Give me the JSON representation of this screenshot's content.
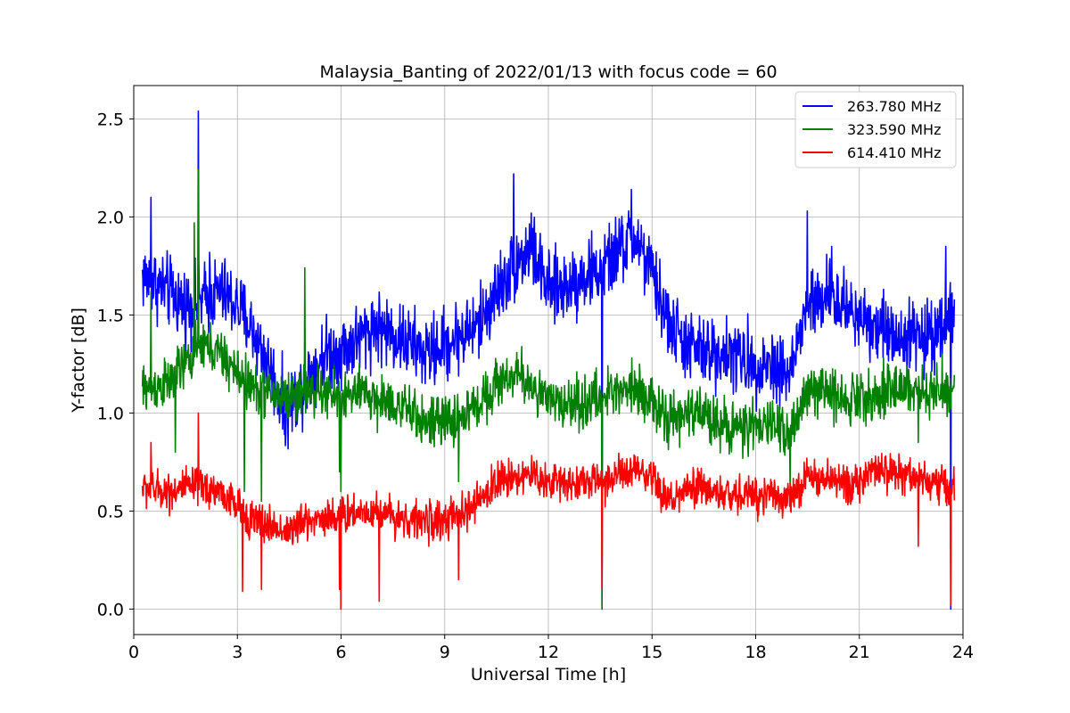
{
  "chart_data": {
    "type": "line",
    "title": "Malaysia_Banting of 2022/01/13 with focus code = 60",
    "xlabel": "Universal Time [h]",
    "ylabel": "Y-factor [dB]",
    "xlim": [
      0,
      24
    ],
    "ylim": [
      -0.13,
      2.67
    ],
    "xticks": [
      0,
      3,
      6,
      9,
      12,
      15,
      18,
      21,
      24
    ],
    "xtick_labels": [
      "0",
      "3",
      "6",
      "9",
      "12",
      "15",
      "18",
      "21",
      "24"
    ],
    "yticks": [
      0.0,
      0.5,
      1.0,
      1.5,
      2.0,
      2.5
    ],
    "ytick_labels": [
      "0.0",
      "0.5",
      "1.0",
      "1.5",
      "2.0",
      "2.5"
    ],
    "grid": true,
    "legend_position": "top-right",
    "x_start": 0.25,
    "x_end": 23.75,
    "series": [
      {
        "name": "263.780 MHz",
        "color": "#0000ff",
        "noise": 0.13,
        "anchors": [
          [
            0.25,
            1.7
          ],
          [
            1,
            1.62
          ],
          [
            1.5,
            1.55
          ],
          [
            2,
            1.58
          ],
          [
            2.5,
            1.62
          ],
          [
            3,
            1.55
          ],
          [
            3.5,
            1.4
          ],
          [
            4,
            1.2
          ],
          [
            4.4,
            1.0
          ],
          [
            5,
            1.18
          ],
          [
            5.5,
            1.3
          ],
          [
            6,
            1.32
          ],
          [
            6.5,
            1.38
          ],
          [
            7,
            1.45
          ],
          [
            7.5,
            1.4
          ],
          [
            8,
            1.35
          ],
          [
            8.5,
            1.3
          ],
          [
            9,
            1.35
          ],
          [
            9.5,
            1.4
          ],
          [
            10,
            1.45
          ],
          [
            10.5,
            1.62
          ],
          [
            11,
            1.75
          ],
          [
            11.5,
            1.85
          ],
          [
            12,
            1.62
          ],
          [
            12.5,
            1.65
          ],
          [
            13,
            1.7
          ],
          [
            13.5,
            1.72
          ],
          [
            14,
            1.82
          ],
          [
            14.5,
            1.9
          ],
          [
            15,
            1.7
          ],
          [
            15.5,
            1.45
          ],
          [
            16,
            1.35
          ],
          [
            16.5,
            1.3
          ],
          [
            17,
            1.32
          ],
          [
            17.5,
            1.28
          ],
          [
            18,
            1.25
          ],
          [
            18.5,
            1.25
          ],
          [
            19,
            1.2
          ],
          [
            19.5,
            1.55
          ],
          [
            20,
            1.58
          ],
          [
            20.5,
            1.55
          ],
          [
            21,
            1.5
          ],
          [
            21.5,
            1.45
          ],
          [
            22,
            1.4
          ],
          [
            22.5,
            1.4
          ],
          [
            23,
            1.38
          ],
          [
            23.75,
            1.55
          ]
        ],
        "spikes": [
          [
            0.5,
            2.1
          ],
          [
            1.87,
            2.54
          ],
          [
            2.2,
            1.82
          ],
          [
            11,
            2.22
          ],
          [
            11.5,
            2.02
          ],
          [
            13.55,
            0.0
          ],
          [
            14.4,
            2.14
          ],
          [
            19.5,
            2.03
          ],
          [
            20.2,
            1.85
          ],
          [
            23.65,
            0.0
          ],
          [
            23.5,
            1.85
          ]
        ]
      },
      {
        "name": "323.590 MHz",
        "color": "#008000",
        "noise": 0.09,
        "anchors": [
          [
            0.25,
            1.12
          ],
          [
            1,
            1.15
          ],
          [
            1.5,
            1.25
          ],
          [
            2,
            1.35
          ],
          [
            2.5,
            1.3
          ],
          [
            3,
            1.2
          ],
          [
            3.5,
            1.12
          ],
          [
            4,
            1.1
          ],
          [
            4.5,
            1.08
          ],
          [
            5,
            1.12
          ],
          [
            5.5,
            1.1
          ],
          [
            6,
            1.08
          ],
          [
            6.5,
            1.1
          ],
          [
            7,
            1.08
          ],
          [
            7.5,
            1.05
          ],
          [
            8,
            1.0
          ],
          [
            8.5,
            0.95
          ],
          [
            9,
            0.95
          ],
          [
            9.5,
            0.98
          ],
          [
            10,
            1.05
          ],
          [
            10.5,
            1.15
          ],
          [
            11,
            1.2
          ],
          [
            11.5,
            1.15
          ],
          [
            12,
            1.05
          ],
          [
            12.5,
            1.05
          ],
          [
            13,
            1.05
          ],
          [
            13.5,
            1.08
          ],
          [
            14,
            1.12
          ],
          [
            14.5,
            1.15
          ],
          [
            15,
            1.05
          ],
          [
            15.5,
            0.95
          ],
          [
            16,
            1.0
          ],
          [
            16.5,
            1.0
          ],
          [
            17,
            0.95
          ],
          [
            17.5,
            0.92
          ],
          [
            18,
            0.92
          ],
          [
            18.5,
            0.95
          ],
          [
            19,
            0.9
          ],
          [
            19.5,
            1.1
          ],
          [
            20,
            1.12
          ],
          [
            20.5,
            1.08
          ],
          [
            21,
            1.08
          ],
          [
            21.5,
            1.1
          ],
          [
            22,
            1.12
          ],
          [
            22.5,
            1.12
          ],
          [
            23,
            1.1
          ],
          [
            23.75,
            1.1
          ]
        ],
        "spikes": [
          [
            0.5,
            1.62
          ],
          [
            1.2,
            0.8
          ],
          [
            1.75,
            1.97
          ],
          [
            1.87,
            2.24
          ],
          [
            3.2,
            0.6
          ],
          [
            3.7,
            0.55
          ],
          [
            4.95,
            1.74
          ],
          [
            5.95,
            0.7
          ],
          [
            6.0,
            0.6
          ],
          [
            7.05,
            0.9
          ],
          [
            9.4,
            0.65
          ],
          [
            13.55,
            0.0
          ],
          [
            19.0,
            0.6
          ],
          [
            21.7,
            1.28
          ],
          [
            22.7,
            0.85
          ],
          [
            23.4,
            1.3
          ]
        ]
      },
      {
        "name": "614.410 MHz",
        "color": "#ff0000",
        "noise": 0.07,
        "anchors": [
          [
            0.25,
            0.62
          ],
          [
            1,
            0.6
          ],
          [
            1.5,
            0.62
          ],
          [
            2,
            0.62
          ],
          [
            2.5,
            0.6
          ],
          [
            3,
            0.52
          ],
          [
            3.5,
            0.45
          ],
          [
            4,
            0.42
          ],
          [
            4.5,
            0.4
          ],
          [
            5,
            0.45
          ],
          [
            5.5,
            0.47
          ],
          [
            6,
            0.48
          ],
          [
            6.5,
            0.5
          ],
          [
            7,
            0.5
          ],
          [
            7.5,
            0.48
          ],
          [
            8,
            0.45
          ],
          [
            8.5,
            0.45
          ],
          [
            9,
            0.45
          ],
          [
            9.5,
            0.48
          ],
          [
            10,
            0.55
          ],
          [
            10.5,
            0.65
          ],
          [
            11,
            0.68
          ],
          [
            11.5,
            0.68
          ],
          [
            12,
            0.65
          ],
          [
            12.5,
            0.65
          ],
          [
            13,
            0.65
          ],
          [
            13.5,
            0.65
          ],
          [
            14,
            0.68
          ],
          [
            14.5,
            0.7
          ],
          [
            15,
            0.65
          ],
          [
            15.5,
            0.55
          ],
          [
            16,
            0.6
          ],
          [
            16.5,
            0.62
          ],
          [
            17,
            0.58
          ],
          [
            17.5,
            0.58
          ],
          [
            18,
            0.58
          ],
          [
            18.5,
            0.6
          ],
          [
            19,
            0.55
          ],
          [
            19.5,
            0.68
          ],
          [
            20,
            0.65
          ],
          [
            20.5,
            0.65
          ],
          [
            21,
            0.65
          ],
          [
            21.5,
            0.7
          ],
          [
            22,
            0.7
          ],
          [
            22.5,
            0.68
          ],
          [
            23,
            0.65
          ],
          [
            23.75,
            0.62
          ]
        ],
        "spikes": [
          [
            0.5,
            0.85
          ],
          [
            1.87,
            1.0
          ],
          [
            3.15,
            0.09
          ],
          [
            3.7,
            0.1
          ],
          [
            5.95,
            0.1
          ],
          [
            6.0,
            0.0
          ],
          [
            7.1,
            0.04
          ],
          [
            9.4,
            0.15
          ],
          [
            13.55,
            0.1
          ],
          [
            22.7,
            0.32
          ],
          [
            23.65,
            0.02
          ]
        ]
      }
    ]
  }
}
